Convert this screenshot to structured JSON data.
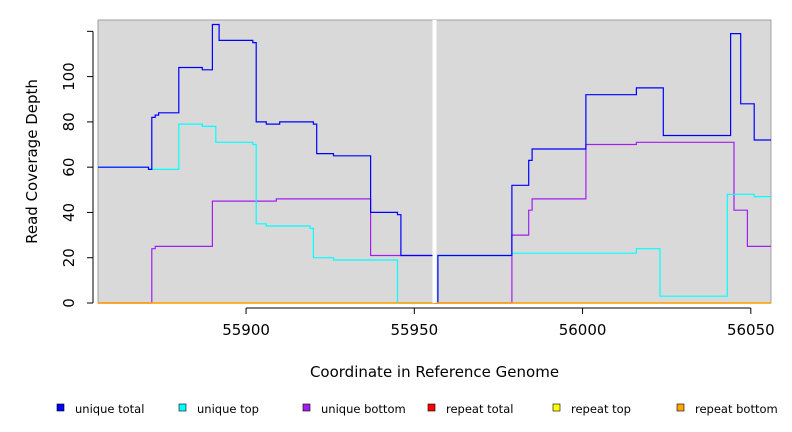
{
  "chart_data": {
    "type": "line",
    "step": true,
    "xlabel": "Coordinate in Reference Genome",
    "ylabel": "Read Coverage Depth",
    "xlim": [
      55856,
      56056
    ],
    "ylim": [
      0,
      125
    ],
    "xticks": [
      55900,
      55950,
      56000,
      56050
    ],
    "yticks": [
      0,
      20,
      40,
      60,
      80,
      100
    ],
    "grid": false,
    "background": "#d9d9d9",
    "gap_marker_x": 55956,
    "gap_marker_color": "#ffffff",
    "legend_position": "bottom",
    "series": [
      {
        "name": "unique total",
        "color": "#0000ff",
        "points": [
          [
            55856,
            60
          ],
          [
            55871,
            59
          ],
          [
            55872,
            82
          ],
          [
            55873,
            83
          ],
          [
            55874,
            84
          ],
          [
            55880,
            104
          ],
          [
            55887,
            103
          ],
          [
            55890,
            123
          ],
          [
            55892,
            116
          ],
          [
            55902,
            115
          ],
          [
            55903,
            80
          ],
          [
            55906,
            79
          ],
          [
            55910,
            80
          ],
          [
            55920,
            79
          ],
          [
            55921,
            66
          ],
          [
            55926,
            65
          ],
          [
            55937,
            40
          ],
          [
            55945,
            39
          ],
          [
            55946,
            21
          ],
          [
            55956,
            0
          ],
          [
            55957,
            21
          ],
          [
            55979,
            52
          ],
          [
            55984,
            63
          ],
          [
            55985,
            68
          ],
          [
            56001,
            92
          ],
          [
            56016,
            95
          ],
          [
            56024,
            74
          ],
          [
            56044,
            119
          ],
          [
            56047,
            88
          ],
          [
            56051,
            72
          ],
          [
            56056,
            72
          ]
        ]
      },
      {
        "name": "unique top",
        "color": "#00ffff",
        "points": [
          [
            55856,
            60
          ],
          [
            55871,
            59
          ],
          [
            55880,
            79
          ],
          [
            55887,
            78
          ],
          [
            55891,
            71
          ],
          [
            55902,
            70
          ],
          [
            55903,
            35
          ],
          [
            55906,
            34
          ],
          [
            55919,
            33
          ],
          [
            55920,
            20
          ],
          [
            55926,
            19
          ],
          [
            55945,
            0
          ],
          [
            55957,
            21
          ],
          [
            55979,
            22
          ],
          [
            56016,
            24
          ],
          [
            56023,
            3
          ],
          [
            56043,
            48
          ],
          [
            56051,
            47
          ],
          [
            56056,
            47
          ]
        ]
      },
      {
        "name": "unique bottom",
        "color": "#a020f0",
        "points": [
          [
            55856,
            0
          ],
          [
            55871,
            0
          ],
          [
            55872,
            24
          ],
          [
            55873,
            25
          ],
          [
            55890,
            45
          ],
          [
            55909,
            46
          ],
          [
            55937,
            21
          ],
          [
            55956,
            0
          ],
          [
            55979,
            30
          ],
          [
            55984,
            41
          ],
          [
            55985,
            46
          ],
          [
            56001,
            70
          ],
          [
            56016,
            71
          ],
          [
            56045,
            41
          ],
          [
            56049,
            25
          ],
          [
            56056,
            25
          ]
        ]
      },
      {
        "name": "repeat total",
        "color": "#ff0000",
        "points": [
          [
            55856,
            0
          ],
          [
            56056,
            0
          ]
        ]
      },
      {
        "name": "repeat top",
        "color": "#ffff00",
        "points": [
          [
            55856,
            0
          ],
          [
            56056,
            0
          ]
        ]
      },
      {
        "name": "repeat bottom",
        "color": "#ffa500",
        "points": [
          [
            55856,
            0
          ],
          [
            56056,
            0
          ]
        ]
      }
    ]
  }
}
